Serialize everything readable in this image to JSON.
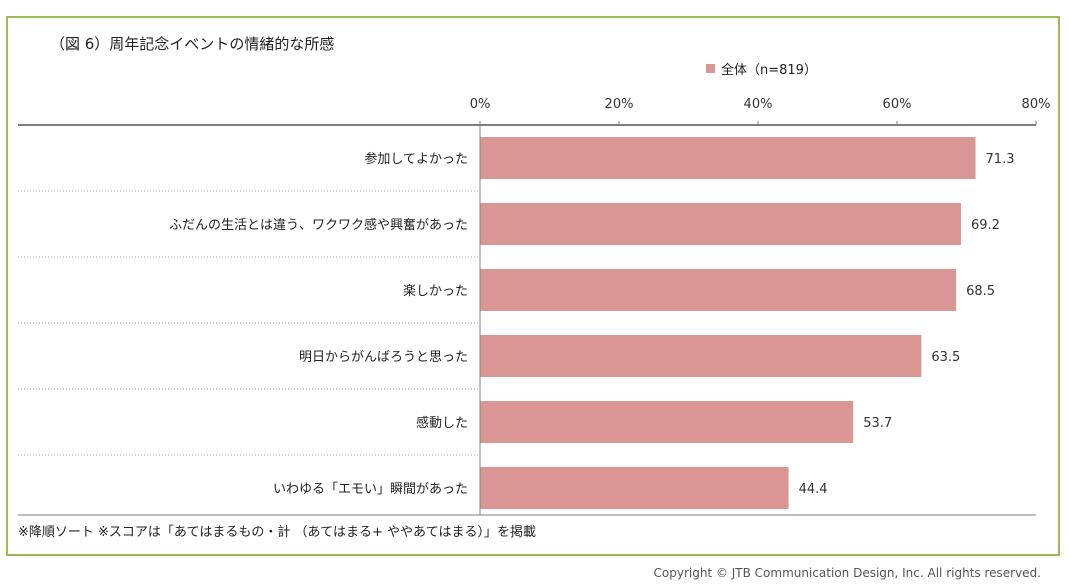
{
  "title": "（図 6）周年記念イベントの情緒的な所感",
  "legend": {
    "label": "全体（n=819）",
    "color": "#d99694"
  },
  "footnote": "※降順ソート ※スコアは「あてはまるもの・計 （あてはまる+ ややあてはまる）」を掲載",
  "copyright": "Copyright © JTB Communication Design, Inc. All rights reserved.",
  "colors": {
    "frame": "#9bbb59",
    "bar": "#d99694",
    "axis": "#7f7f7f",
    "separator": "#a6a6a6"
  },
  "chart_data": {
    "type": "bar",
    "orientation": "horizontal",
    "categories": [
      "参加してよかった",
      "ふだんの生活とは違う、ワクワク感や興奮があった",
      "楽しかった",
      "明日からがんばろうと思った",
      "感動した",
      "いわゆる「エモい」瞬間があった"
    ],
    "series": [
      {
        "name": "全体（n=819）",
        "values": [
          71.3,
          69.2,
          68.5,
          63.5,
          53.7,
          44.4
        ]
      }
    ],
    "value_labels": [
      "71.3",
      "69.2",
      "68.5",
      "63.5",
      "53.7",
      "44.4"
    ],
    "xlim": [
      0,
      80
    ],
    "x_ticks": [
      0,
      20,
      40,
      60,
      80
    ],
    "x_tick_labels": [
      "0%",
      "20%",
      "40%",
      "60%",
      "80%"
    ],
    "axis_position": "top",
    "legend_position": "top-right",
    "grid": false
  }
}
